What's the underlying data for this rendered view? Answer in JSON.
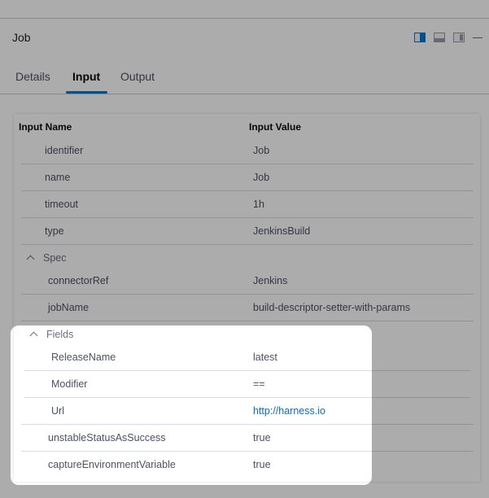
{
  "header": {
    "title": "Job",
    "icons": [
      "split-right-icon",
      "split-bottom-icon",
      "panel-right-icon",
      "minimize-icon"
    ],
    "accent": "#0278d5"
  },
  "tabs": [
    {
      "label": "Details"
    },
    {
      "label": "Input",
      "active": true
    },
    {
      "label": "Output"
    }
  ],
  "table": {
    "columns": [
      "Input Name",
      "Input Value"
    ],
    "rows": [
      {
        "name": "identifier",
        "value": "Job"
      },
      {
        "name": "name",
        "value": "Job"
      },
      {
        "name": "timeout",
        "value": "1h"
      },
      {
        "name": "type",
        "value": "JenkinsBuild"
      }
    ],
    "spec": {
      "label": "Spec",
      "rows": [
        {
          "name": "connectorRef",
          "value": "Jenkins"
        },
        {
          "name": "jobName",
          "value": "build-descriptor-setter-with-params"
        }
      ]
    },
    "fields": {
      "label": "Fields",
      "rows": [
        {
          "name": "ReleaseName",
          "value": "latest"
        },
        {
          "name": "Modifier",
          "value": "=="
        },
        {
          "name": "Url",
          "value": "http://harness.io"
        }
      ]
    },
    "tail": [
      {
        "name": "unstableStatusAsSuccess",
        "value": "true"
      },
      {
        "name": "captureEnvironmentVariable",
        "value": "true"
      }
    ]
  }
}
